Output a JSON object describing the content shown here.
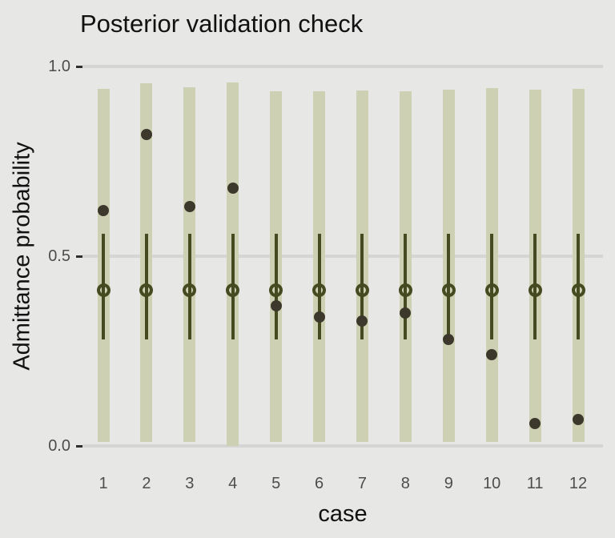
{
  "chart_data": {
    "type": "pointrange",
    "title": "Posterior validation check",
    "xlabel": "case",
    "ylabel": "Admittance probability",
    "ylim": [
      0.0,
      1.0
    ],
    "grid": true,
    "legend": false,
    "categories": [
      "1",
      "2",
      "3",
      "4",
      "5",
      "6",
      "7",
      "8",
      "9",
      "10",
      "11",
      "12"
    ],
    "y_ticks": [
      {
        "label": "1.0",
        "value": 1.0
      },
      {
        "label": "0.5",
        "value": 0.5
      },
      {
        "label": "0.0",
        "value": 0.0
      }
    ],
    "series": [
      {
        "name": "posterior-band",
        "type": "band",
        "lo": [
          0.01,
          0.01,
          0.01,
          0.0,
          0.01,
          0.01,
          0.01,
          0.01,
          0.01,
          0.01,
          0.01,
          0.01
        ],
        "hi": [
          0.94,
          0.955,
          0.945,
          0.958,
          0.935,
          0.935,
          0.937,
          0.935,
          0.939,
          0.943,
          0.939,
          0.941
        ]
      },
      {
        "name": "credible-interval",
        "type": "errorbar",
        "lo": [
          0.28,
          0.28,
          0.28,
          0.28,
          0.28,
          0.28,
          0.28,
          0.28,
          0.28,
          0.28,
          0.28,
          0.28
        ],
        "hi": [
          0.56,
          0.56,
          0.56,
          0.56,
          0.56,
          0.56,
          0.56,
          0.56,
          0.56,
          0.56,
          0.56,
          0.56
        ]
      },
      {
        "name": "posterior-median",
        "type": "open-point",
        "values": [
          0.41,
          0.41,
          0.41,
          0.41,
          0.41,
          0.41,
          0.41,
          0.41,
          0.41,
          0.41,
          0.41,
          0.41
        ]
      },
      {
        "name": "observed",
        "type": "point",
        "values": [
          0.62,
          0.82,
          0.63,
          0.68,
          0.37,
          0.34,
          0.33,
          0.35,
          0.28,
          0.24,
          0.06,
          0.07
        ]
      }
    ],
    "colors": {
      "background": "#e7e7e6",
      "gridline": "#d5d5d3",
      "band": "#cdd0b2",
      "interval": "#454a20",
      "open_point": "#454a20",
      "observed_point": "#3d382c",
      "tick_text": "#4d4d4d",
      "title_text": "#111111"
    }
  }
}
